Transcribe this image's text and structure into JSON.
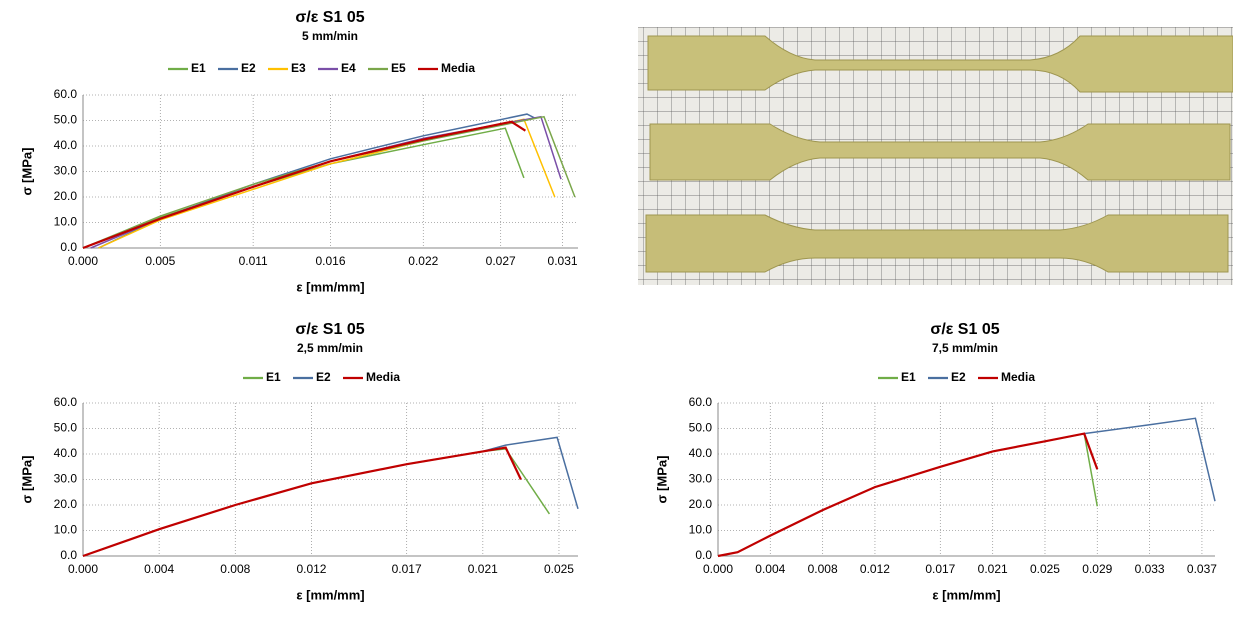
{
  "chart_data": [
    {
      "type": "line",
      "title": "σ/ε S1 05",
      "subtitle": "5 mm/min",
      "x_label": "ε [mm/mm]",
      "y_label": "σ [MPa]",
      "xlim": [
        0,
        0.032
      ],
      "ylim": [
        0,
        60
      ],
      "grid": true,
      "legend": "top",
      "xticks": [
        {
          "value": 0,
          "label": "0.000"
        },
        {
          "value": 0.005,
          "label": "0.005"
        },
        {
          "value": 0.011,
          "label": "0.011"
        },
        {
          "value": 0.016,
          "label": "0.016"
        },
        {
          "value": 0.022,
          "label": "0.022"
        },
        {
          "value": 0.027,
          "label": "0.027"
        },
        {
          "value": 0.031,
          "label": "0.031"
        }
      ],
      "yticks": [
        {
          "value": 0,
          "label": "0.0"
        },
        {
          "value": 10,
          "label": "10.0"
        },
        {
          "value": 20,
          "label": "20.0"
        },
        {
          "value": 30,
          "label": "30.0"
        },
        {
          "value": 40,
          "label": "40.0"
        },
        {
          "value": 50,
          "label": "50.0"
        },
        {
          "value": 60,
          "label": "60.0"
        }
      ],
      "series": [
        {
          "name": "E1",
          "color": "#70ad47",
          "x": [
            0,
            0.005,
            0.011,
            0.016,
            0.022,
            0.0273,
            0.0285
          ],
          "values": [
            0,
            12,
            24,
            33,
            40.5,
            47,
            27.5
          ]
        },
        {
          "name": "E2",
          "color": "#4a6fa0",
          "x": [
            0.001,
            0.005,
            0.011,
            0.016,
            0.022,
            0.0287,
            0.0292
          ],
          "values": [
            0,
            11.5,
            25,
            35,
            44,
            52.5,
            51
          ]
        },
        {
          "name": "E3",
          "color": "#ffc000",
          "x": [
            0.001,
            0.005,
            0.011,
            0.016,
            0.022,
            0.0285,
            0.0305
          ],
          "values": [
            0,
            11,
            23,
            33,
            42,
            50.5,
            20
          ]
        },
        {
          "name": "E4",
          "color": "#7a4fa8",
          "x": [
            0.0005,
            0.005,
            0.011,
            0.016,
            0.022,
            0.0296,
            0.0309
          ],
          "values": [
            0,
            11.5,
            24,
            34,
            43,
            51.5,
            27
          ]
        },
        {
          "name": "E5",
          "color": "#7aa64a",
          "x": [
            0,
            0.005,
            0.011,
            0.016,
            0.022,
            0.0298,
            0.0318
          ],
          "values": [
            0,
            12.5,
            25,
            34,
            42,
            51.5,
            20
          ]
        },
        {
          "name": "Media",
          "color": "#c00000",
          "x": [
            0,
            0.005,
            0.011,
            0.016,
            0.022,
            0.0277,
            0.0286
          ],
          "values": [
            0,
            11.5,
            24,
            34,
            42.5,
            49.5,
            46
          ]
        }
      ]
    },
    {
      "type": "line",
      "title": "σ/ε S1 05",
      "subtitle": "2,5 mm/min",
      "x_label": "ε [mm/mm]",
      "y_label": "σ [MPa]",
      "xlim": [
        0,
        0.026
      ],
      "ylim": [
        0,
        60
      ],
      "grid": true,
      "legend": "top",
      "xticks": [
        {
          "value": 0,
          "label": "0.000"
        },
        {
          "value": 0.004,
          "label": "0.004"
        },
        {
          "value": 0.008,
          "label": "0.008"
        },
        {
          "value": 0.012,
          "label": "0.012"
        },
        {
          "value": 0.017,
          "label": "0.017"
        },
        {
          "value": 0.021,
          "label": "0.021"
        },
        {
          "value": 0.025,
          "label": "0.025"
        }
      ],
      "yticks": [
        {
          "value": 0,
          "label": "0.0"
        },
        {
          "value": 10,
          "label": "10.0"
        },
        {
          "value": 20,
          "label": "20.0"
        },
        {
          "value": 30,
          "label": "30.0"
        },
        {
          "value": 40,
          "label": "40.0"
        },
        {
          "value": 50,
          "label": "50.0"
        },
        {
          "value": 60,
          "label": "60.0"
        }
      ],
      "series": [
        {
          "name": "E1",
          "color": "#70ad47",
          "x": [
            0,
            0.004,
            0.008,
            0.012,
            0.017,
            0.021,
            0.0222,
            0.0245
          ],
          "values": [
            0,
            10.5,
            20,
            28.5,
            36,
            41,
            42,
            16.5
          ]
        },
        {
          "name": "E2",
          "color": "#4a6fa0",
          "x": [
            0,
            0.004,
            0.008,
            0.012,
            0.017,
            0.021,
            0.0222,
            0.0249,
            0.026
          ],
          "values": [
            0,
            10.5,
            20,
            28.5,
            36,
            41,
            43.5,
            46.5,
            18.5
          ]
        },
        {
          "name": "Media",
          "color": "#c00000",
          "x": [
            0,
            0.004,
            0.008,
            0.012,
            0.017,
            0.021,
            0.0222,
            0.023
          ],
          "values": [
            0,
            10.5,
            20,
            28.5,
            36,
            41,
            42.5,
            30
          ]
        }
      ]
    },
    {
      "type": "line",
      "title": "σ/ε S1 05",
      "subtitle": "7,5 mm/min",
      "x_label": "ε [mm/mm]",
      "y_label": "σ [MPa]",
      "xlim": [
        0,
        0.038
      ],
      "ylim": [
        0,
        60
      ],
      "grid": true,
      "legend": "top",
      "xticks": [
        {
          "value": 0,
          "label": "0.000"
        },
        {
          "value": 0.004,
          "label": "0.004"
        },
        {
          "value": 0.008,
          "label": "0.008"
        },
        {
          "value": 0.012,
          "label": "0.012"
        },
        {
          "value": 0.017,
          "label": "0.017"
        },
        {
          "value": 0.021,
          "label": "0.021"
        },
        {
          "value": 0.025,
          "label": "0.025"
        },
        {
          "value": 0.029,
          "label": "0.029"
        },
        {
          "value": 0.033,
          "label": "0.033"
        },
        {
          "value": 0.037,
          "label": "0.037"
        }
      ],
      "yticks": [
        {
          "value": 0,
          "label": "0.0"
        },
        {
          "value": 10,
          "label": "10.0"
        },
        {
          "value": 20,
          "label": "20.0"
        },
        {
          "value": 30,
          "label": "30.0"
        },
        {
          "value": 40,
          "label": "40.0"
        },
        {
          "value": 50,
          "label": "50.0"
        },
        {
          "value": 60,
          "label": "60.0"
        }
      ],
      "series": [
        {
          "name": "E1",
          "color": "#70ad47",
          "x": [
            0,
            0.0015,
            0.004,
            0.008,
            0.012,
            0.017,
            0.021,
            0.025,
            0.028,
            0.029
          ],
          "values": [
            0,
            1.5,
            8,
            18,
            27,
            35,
            41,
            45,
            48,
            19.5
          ]
        },
        {
          "name": "E2",
          "color": "#4a6fa0",
          "x": [
            0,
            0.0015,
            0.004,
            0.008,
            0.012,
            0.017,
            0.021,
            0.025,
            0.028,
            0.033,
            0.0365,
            0.038
          ],
          "values": [
            0,
            1.5,
            8,
            18,
            27,
            35,
            41,
            45,
            48,
            51.5,
            54,
            21.5
          ]
        },
        {
          "name": "Media",
          "color": "#c00000",
          "x": [
            0,
            0.0015,
            0.004,
            0.008,
            0.012,
            0.017,
            0.021,
            0.025,
            0.028,
            0.029
          ],
          "values": [
            0,
            1.5,
            8,
            18,
            27,
            35,
            41,
            45,
            48,
            34
          ]
        }
      ]
    }
  ]
}
